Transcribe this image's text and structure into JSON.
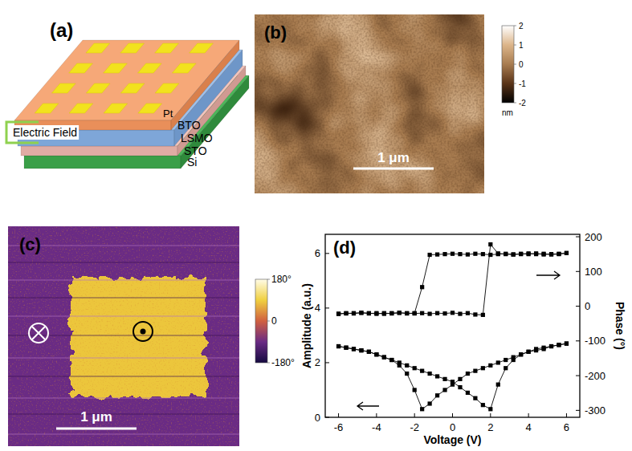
{
  "panels": {
    "a": {
      "label": "(a)",
      "layers": [
        "Pt",
        "BTO",
        "LSMO",
        "STO",
        "Si"
      ],
      "annotation": "Electric Field"
    },
    "b": {
      "label": "(b)",
      "scale_bar": "1 μm",
      "colorbar": {
        "range": [
          -2,
          2
        ],
        "ticks": [
          2,
          1,
          0,
          -1,
          -2
        ],
        "unit": "nm"
      }
    },
    "c": {
      "label": "(c)",
      "scale_bar": "1 μm",
      "colorbar": {
        "range": [
          -180,
          180
        ],
        "ticks": [
          {
            "value": 180,
            "label": "180°"
          },
          0,
          {
            "value": -180,
            "label": "-180°"
          }
        ]
      }
    }
  },
  "chart_data": {
    "type": "line",
    "title": "(d)",
    "x_label": "Voltage (V)",
    "y_label": "Amplitude (a.u.)",
    "y2_label": "Phase (°)",
    "x": [
      -6,
      -5.6,
      -5.2,
      -4.8,
      -4.4,
      -4,
      -3.6,
      -3.2,
      -2.8,
      -2.4,
      -2,
      -1.6,
      -1.2,
      -0.8,
      -0.4,
      0,
      0.4,
      0.8,
      1.2,
      1.6,
      2,
      2.4,
      2.8,
      3.2,
      3.6,
      4,
      4.4,
      4.8,
      5.2,
      5.6,
      6,
      6,
      5.6,
      5.2,
      4.8,
      4.4,
      4,
      3.6,
      3.2,
      2.8,
      2.4,
      2,
      1.6,
      1.2,
      0.8,
      0.4,
      0,
      -0.4,
      -0.8,
      -1.2,
      -1.6,
      -2,
      -2.4,
      -2.8,
      -3.2,
      -3.6,
      -4,
      -4.4,
      -4.8,
      -5.2,
      -5.6,
      -6
    ],
    "series": [
      {
        "color": "#000000",
        "marker": "square",
        "values": [
          2.6,
          2.55,
          2.5,
          2.45,
          2.4,
          2.3,
          2.2,
          2.1,
          2.0,
          1.9,
          1.8,
          1.7,
          1.6,
          1.5,
          1.4,
          1.3,
          1.1,
          0.9,
          0.7,
          0.45,
          0.3,
          1.2,
          1.8,
          2.1,
          2.3,
          2.4,
          2.5,
          2.55,
          2.6,
          2.65,
          2.7,
          2.7,
          2.65,
          2.6,
          2.5,
          2.45,
          2.4,
          2.3,
          2.2,
          2.1,
          2.0,
          1.9,
          1.8,
          1.7,
          1.6,
          1.4,
          1.2,
          1.0,
          0.8,
          0.5,
          0.3,
          1.0,
          1.6,
          1.9,
          2.1,
          2.2,
          2.3,
          2.4,
          2.45,
          2.5,
          2.55,
          2.6
        ]
      },
      {
        "color": "#000000",
        "marker": "square",
        "axis": "y2",
        "values": [
          -22,
          -20,
          -21,
          -19,
          -20,
          -22,
          -20,
          -21,
          -19,
          -20,
          -21,
          -20,
          -22,
          -20,
          -21,
          -19,
          -22,
          -20,
          -24,
          -25,
          178,
          152,
          150,
          149,
          151,
          150,
          152,
          149,
          150,
          151,
          153,
          153,
          150,
          149,
          151,
          150,
          152,
          150,
          149,
          151,
          150,
          148,
          150,
          151,
          149,
          150,
          151,
          150,
          149,
          148,
          55,
          -20,
          -21,
          -19,
          -20,
          -22,
          -20,
          -21,
          -19,
          -20,
          -21,
          -22
        ]
      }
    ],
    "xlim": [
      -6.7,
      6.7
    ],
    "xticks": [
      -6,
      -4,
      -2,
      0,
      2,
      4,
      6
    ],
    "ylim": [
      0,
      6.7
    ],
    "yticks": [
      0,
      2,
      4,
      6
    ],
    "y2lim": [
      -320,
      207
    ],
    "y2ticks": [
      -300,
      -200,
      -100,
      0,
      100,
      200
    ],
    "grid": false
  }
}
